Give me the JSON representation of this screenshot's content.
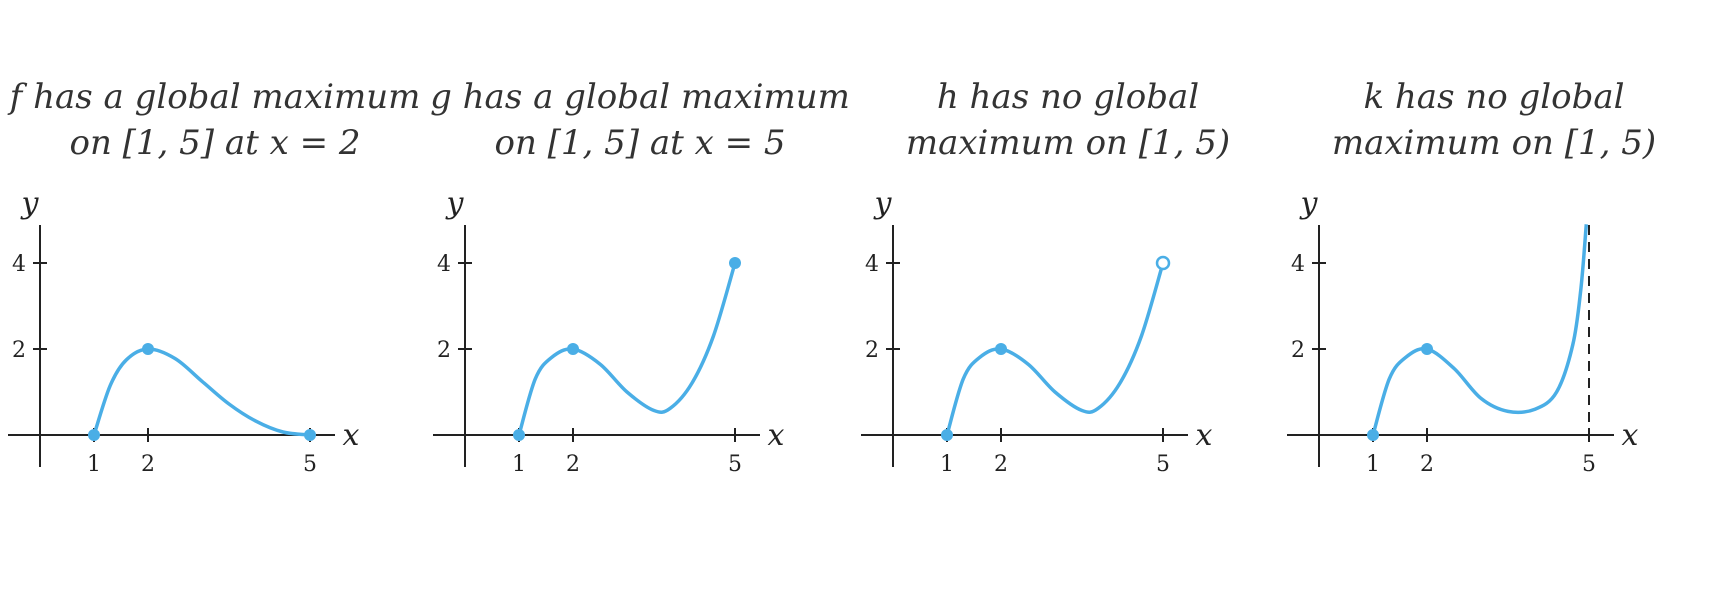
{
  "chart_data": [
    {
      "type": "line",
      "title_lines": [
        "f has a global maximum",
        "on [1, 5] at x = 2"
      ],
      "xlabel": "x",
      "ylabel": "y",
      "xticks": [
        1,
        2,
        5
      ],
      "yticks": [
        2,
        4
      ],
      "xlim": [
        0,
        5.6
      ],
      "ylim": [
        -0.7,
        4.9
      ],
      "curve": [
        [
          1,
          0
        ],
        [
          1.3,
          1.15
        ],
        [
          1.6,
          1.75
        ],
        [
          2,
          2
        ],
        [
          2.5,
          1.78
        ],
        [
          3,
          1.25
        ],
        [
          3.5,
          0.72
        ],
        [
          4,
          0.32
        ],
        [
          4.5,
          0.07
        ],
        [
          5,
          0
        ]
      ],
      "points": [
        {
          "x": 1,
          "y": 0,
          "open": false
        },
        {
          "x": 2,
          "y": 2,
          "open": false
        },
        {
          "x": 5,
          "y": 0,
          "open": false
        }
      ],
      "asymptote_x": null
    },
    {
      "type": "line",
      "title_lines": [
        "g has a global maximum",
        "on [1, 5] at x = 5"
      ],
      "xlabel": "x",
      "ylabel": "y",
      "xticks": [
        1,
        2,
        5
      ],
      "yticks": [
        2,
        4
      ],
      "xlim": [
        0,
        5.6
      ],
      "ylim": [
        -0.7,
        4.9
      ],
      "curve": [
        [
          1,
          0
        ],
        [
          1.3,
          1.3
        ],
        [
          1.6,
          1.8
        ],
        [
          2,
          2
        ],
        [
          2.5,
          1.65
        ],
        [
          3,
          1.0
        ],
        [
          3.5,
          0.57
        ],
        [
          3.8,
          0.62
        ],
        [
          4.2,
          1.2
        ],
        [
          4.6,
          2.3
        ],
        [
          5,
          4
        ]
      ],
      "points": [
        {
          "x": 1,
          "y": 0,
          "open": false
        },
        {
          "x": 2,
          "y": 2,
          "open": false
        },
        {
          "x": 5,
          "y": 4,
          "open": false
        }
      ],
      "asymptote_x": null
    },
    {
      "type": "line",
      "title_lines": [
        "h has no global",
        "maximum on [1, 5)"
      ],
      "xlabel": "x",
      "ylabel": "y",
      "xticks": [
        1,
        2,
        5
      ],
      "yticks": [
        2,
        4
      ],
      "xlim": [
        0,
        5.6
      ],
      "ylim": [
        -0.7,
        4.9
      ],
      "curve": [
        [
          1,
          0
        ],
        [
          1.3,
          1.3
        ],
        [
          1.6,
          1.8
        ],
        [
          2,
          2
        ],
        [
          2.5,
          1.65
        ],
        [
          3,
          1.0
        ],
        [
          3.5,
          0.57
        ],
        [
          3.8,
          0.62
        ],
        [
          4.2,
          1.2
        ],
        [
          4.6,
          2.3
        ],
        [
          5,
          4
        ]
      ],
      "points": [
        {
          "x": 1,
          "y": 0,
          "open": false
        },
        {
          "x": 2,
          "y": 2,
          "open": false
        },
        {
          "x": 5,
          "y": 4,
          "open": true
        }
      ],
      "asymptote_x": null
    },
    {
      "type": "line",
      "title_lines": [
        "k has no global",
        "maximum on [1, 5)"
      ],
      "xlabel": "x",
      "ylabel": "y",
      "xticks": [
        1,
        2,
        5
      ],
      "yticks": [
        2,
        4
      ],
      "xlim": [
        0,
        5.6
      ],
      "ylim": [
        -0.7,
        4.9
      ],
      "curve": [
        [
          1,
          0
        ],
        [
          1.3,
          1.3
        ],
        [
          1.6,
          1.8
        ],
        [
          2,
          2
        ],
        [
          2.5,
          1.55
        ],
        [
          3,
          0.85
        ],
        [
          3.5,
          0.55
        ],
        [
          4,
          0.6
        ],
        [
          4.4,
          1.0
        ],
        [
          4.7,
          2.1
        ],
        [
          4.85,
          3.4
        ],
        [
          4.95,
          4.9
        ]
      ],
      "points": [
        {
          "x": 1,
          "y": 0,
          "open": false
        },
        {
          "x": 2,
          "y": 2,
          "open": false
        }
      ],
      "asymptote_x": 5
    }
  ]
}
